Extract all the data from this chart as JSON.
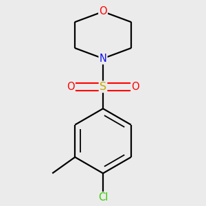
{
  "background_color": "#ebebeb",
  "atom_colors": {
    "C": "#000000",
    "N": "#1010ee",
    "O": "#ff0000",
    "S": "#c8a800",
    "Cl": "#33cc00"
  },
  "bond_color": "#000000",
  "bond_width": 1.6,
  "font_size_atoms": 10.5,
  "figsize": [
    3.0,
    3.0
  ],
  "dpi": 100,
  "xlim": [
    -1.0,
    1.0
  ],
  "ylim": [
    -1.3,
    1.2
  ]
}
